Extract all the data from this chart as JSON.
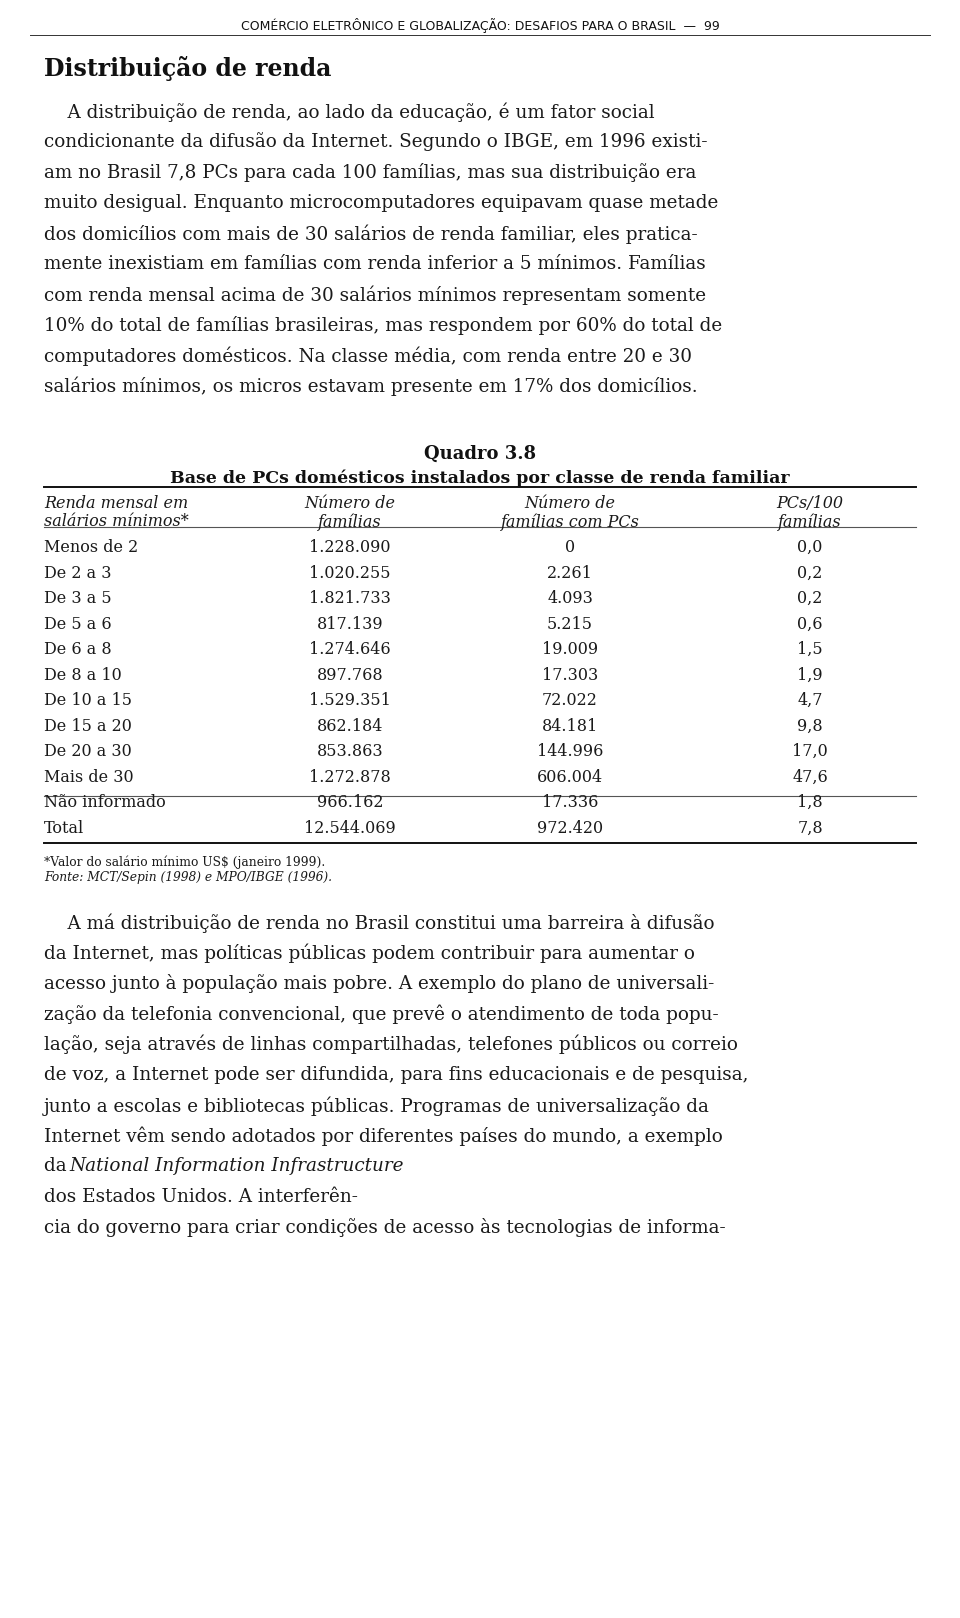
{
  "page_header": "COMÉRCIO ELETRÔNICO E GLOBALIZAÇÃO: DESAFIOS PARA O BRASIL  —  99",
  "section_title": "Distribuição de renda",
  "para1_lines": [
    "    A distribuição de renda, ao lado da educação, é um fator social",
    "condicionante da difusão da Internet. Segundo o IBGE, em 1996 existi-",
    "am no Brasil 7,8 PCs para cada 100 famílias, mas sua distribuição era",
    "muito desigual. Enquanto microcomputadores equipavam quase metade",
    "dos domicílios com mais de 30 salários de renda familiar, eles pratica-",
    "mente inexistiam em famílias com renda inferior a 5 mínimos. Famílias",
    "com renda mensal acima de 30 salários mínimos representam somente",
    "10% do total de famílias brasileiras, mas respondem por 60% do total de",
    "computadores domésticos. Na classe média, com renda entre 20 e 30",
    "salários mínimos, os micros estavam presente em 17% dos domicílios."
  ],
  "table_title1": "Quadro 3.8",
  "table_title2": "Base de PCs domésticos instalados por classe de renda familiar",
  "col_headers": [
    [
      "Renda mensal em",
      "salários mínimos*"
    ],
    [
      "Número de",
      "famílias"
    ],
    [
      "Número de",
      "famílias com PCs"
    ],
    [
      "PCs/100",
      "famílias"
    ]
  ],
  "rows": [
    [
      "Menos de 2",
      "1.228.090",
      "0",
      "0,0"
    ],
    [
      "De 2 a 3",
      "1.020.255",
      "2.261",
      "0,2"
    ],
    [
      "De 3 a 5",
      "1.821.733",
      "4.093",
      "0,2"
    ],
    [
      "De 5 a 6",
      "817.139",
      "5.215",
      "0,6"
    ],
    [
      "De 6 a 8",
      "1.274.646",
      "19.009",
      "1,5"
    ],
    [
      "De 8 a 10",
      "897.768",
      "17.303",
      "1,9"
    ],
    [
      "De 10 a 15",
      "1.529.351",
      "72.022",
      "4,7"
    ],
    [
      "De 15 a 20",
      "862.184",
      "84.181",
      "9,8"
    ],
    [
      "De 20 a 30",
      "853.863",
      "144.996",
      "17,0"
    ],
    [
      "Mais de 30",
      "1.272.878",
      "606.004",
      "47,6"
    ],
    [
      "Não informado",
      "966.162",
      "17.336",
      "1,8"
    ],
    [
      "Total",
      "12.544.069",
      "972.420",
      "7,8"
    ]
  ],
  "footnote1": "*Valor do salário mínimo US$ (janeiro 1999).",
  "footnote2_normal": "Fonte",
  "footnote2_italic": ": MCT/Sepin (1998) e MPO/IBGE (1996).",
  "para2_lines": [
    "    A má distribuição de renda no Brasil constitui uma barreira à difusão",
    "da Internet, mas políticas públicas podem contribuir para aumentar o",
    "acesso junto à população mais pobre. A exemplo do plano de universali-",
    "zação da telefonia convencional, que prevê o atendimento de toda popu-",
    "lação, seja através de linhas compartilhadas, telefones públicos ou correio",
    "de voz, a Internet pode ser difundida, para fins educacionais e de pesquisa,",
    "junto a escolas e bibliotecas públicas. Programas de universalização da",
    "Internet vêm sendo adotados por diferentes países do mundo, a exemplo",
    "da ",
    "dos Estados Unidos. A interferên-",
    "cia do governo para criar condições de acesso às tecnologias de informa-"
  ],
  "para2_italic_phrase": "National Information Infrastructure",
  "bg_color": "#ffffff",
  "text_color": "#1a1a1a",
  "header_color": "#111111"
}
